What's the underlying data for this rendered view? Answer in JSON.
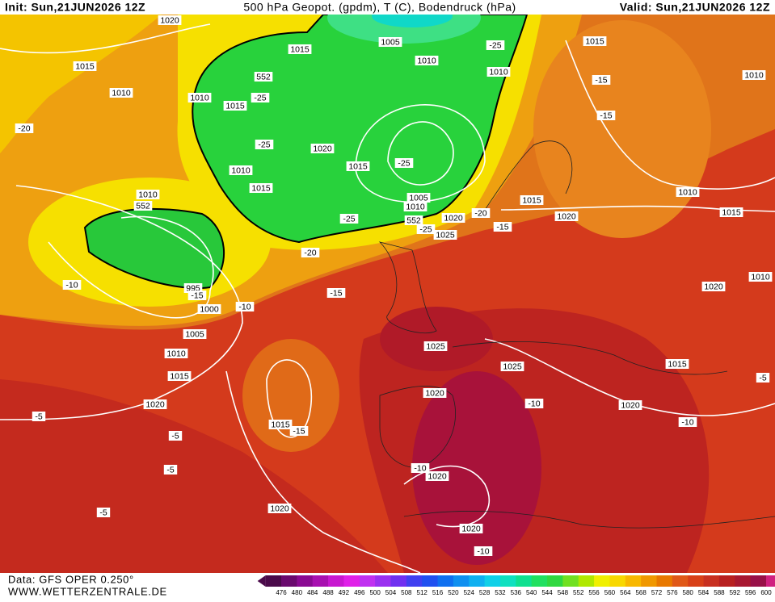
{
  "header": {
    "init": "Init: Sun,21JUN2026 12Z",
    "title": "500 hPa Geopot. (gpdm), T (C), Bodendruck (hPa)",
    "valid": "Valid: Sun,21JUN2026 12Z"
  },
  "map": {
    "labels": [
      1020,
      1015,
      1010,
      1010,
      1015,
      1005,
      1010,
      -25,
      1010,
      1015,
      -15,
      1010,
      -15,
      552,
      -25,
      1015,
      -20,
      1020,
      -25,
      1010,
      1015,
      -25,
      1015,
      1010,
      552,
      1005,
      1010,
      552,
      -25,
      1020,
      -20,
      1015,
      1020,
      1010,
      1015,
      1025,
      -25,
      -15,
      -20,
      -10,
      995,
      -15,
      1000,
      -10,
      -15,
      1005,
      1010,
      1015,
      1020,
      1025,
      1025,
      1020,
      -10,
      1015,
      1020,
      -10,
      1020,
      1010,
      -5,
      -5,
      -5,
      -5,
      1015,
      -15,
      -10,
      1020,
      1020,
      1020,
      -10,
      -5
    ]
  },
  "footer": {
    "data_source": "Data: GFS OPER 0.250°",
    "website": "WWW.WETTERZENTRALE.DE"
  },
  "legend": {
    "ticks": [
      476,
      480,
      484,
      488,
      492,
      496,
      500,
      504,
      508,
      512,
      516,
      520,
      524,
      528,
      532,
      536,
      540,
      544,
      548,
      552,
      556,
      560,
      564,
      568,
      572,
      576,
      580,
      584,
      588,
      592,
      596,
      600
    ]
  }
}
